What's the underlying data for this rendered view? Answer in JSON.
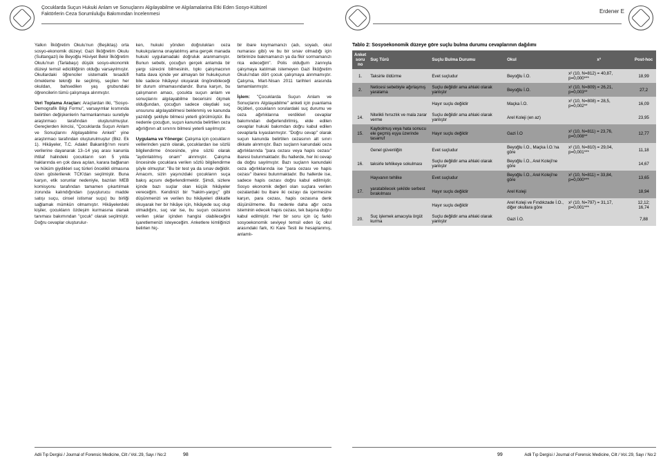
{
  "header": {
    "title_line1": "Çocuklarda Suçun Hukuki Anlam ve Sonuçlarını Algılayabilme ve Algılamalarina Etki Eden Sosyo-Kültürel",
    "title_line2": "Faktörlerin Ceza Sorumluluğu Bakımından İncelenmesi",
    "author": "Erdener E"
  },
  "body": {
    "p1": "Yalkın İlköğretim Okulu'nun (Beşiktaş) orta sosyo-ekonomik düzeyi; Gazi İlköğretim Okulu (Sultangazi) ile Beyoğlu Hüviyet Bekir İlköğretim Okulu'nun (Tarlabaşı) düşük sosyo-ekonomik düzeyi temsil edicililiğinin olduğu varsayılmıştır. Okullardaki öğrenciler sistematik tesadüfi örnekleme tekniği ile seçilmiş, seçilen her okuldan, bahsedilen yaş grubundaki öğrencilerin tümü çalışmaya alınmıştır.",
    "p2a": "Veri Toplama Araçları:",
    "p2": " Araçlardan ilki, \"Sosyo-Demografik Bilgi Formu\", varsayımlar kısmında belirtilen değişkenlerin harmanlanması suretiyle araştırmacı tarafından oluşturulmuştur. Gereçlerden ikincisi, \"Çocuklarda Suçun Anlam ve Sonuçlarını Algılayabilme Anketi\" yine araştırmacı tarafından oluşturulmuştur (Bkz. Ek 1). Hikâyeler, T.C. Adalet Bakanlığı'nın resmi verilerine dayanarak 13–14 yaş arası kanunla ihtilaf halindeki çocukların son 5 yılda haklarında en çok dava açılan, karara bağlanan ve hüküm giydikleri suç türleri öncelikli olmasına özen gösterilerek TCK'dan seçilmiştir. Buna karşın, etik sorunlar nedeniyle, bazıları MEB komisyonu tarafından tamamen çıkartılmak zorunda kalındığından (uyuşturucu madde satışı suçu, cinsel istismar suçu) bu birliği sağlamak mümkün olmamıştır. Hikâyelerdeki kişiler, çocukların özdeşim kurmasına olanak tanıması bakımından \"çocuk\" olarak seçilmiştir. Doğru cevaplar oluşturulur-",
    "p3": "ken, hukuki yönden doğrulukları ceza hukukçularına onaylatılmış ama gerçek manada hukuki uygulamadaki doğruluk aranmamıştır. Bunun sebebi, çocuğun gerçek anlamda bir yargı sürecini bilmesinin, tıpkı çalışmacının hatta dava içinde yer almayan bir hukukçunun bile sadece hikâyeyi okuyarak öngörebileceği bir durum olmamasındandır. Buna karşın, bu çalışmanın amacı, çocukta suçun anlam ve sonuçlarını algılayabilme becerisini ölçmek olduğundan, çocuğun sadece olaydaki suç unsurunu algılayabilmesi beklenmiş ve kanunda yazıldığı şekliyle bilmesi yeterli görülmüştür. Bu nedenle çocuğun, suçun kanunda belirtilen ceza ağırlığının alt sınırını bilmesi yeterli sayılmıştır.",
    "p4a": "Uygulama ve Yönerge:",
    "p4": " Çalışma için çocukların velilerinden yazılı olarak, çocuklardan ise sözlü bilgilendirme öncesinde, yine sözlü olarak \"aydınlatılmış onam\" alınmıştır. Çalışma öncesinde çocuklara verilen sözlü bilgilendirme şöyle olmuştur: \"Bu bir test ya da sınav değildir. Amacım, sizin yaşınızdaki çocukların suça bakış açısını değerlendirmektir. Şimdi, sizlere içinde bazı suçlar olan küçük hikâyeler vereceğim. Kendinizi bir \"hakim-yargıç\" gibi düşünmenizi ve verilen bu hikâyeleri dikkatle okuyarak her bir hikâye için, hikâyede suç olup olmadığını, suç var ise, bu suçun cezasının verilen şıklar içinden hangisi olabileceğini işaretlemenizi isteyeceğim. Anketlere kimliğinizi belirten hiç-",
    "p5": "bir ibare koymamanızı (adı, soyadı, okul numarası gibi) ve bu bir sınav olmadığı için birbirinize bakmamanızı ya da fikir sormamanızı rica edeceğim\". Polis olduğum zannıyla çalışmaya katılmak istemeyen Gazi İlköğretim Okulu'ndan dört çocuk çalışmaya alınmamıştır. Çalışma, Mart-Nisan 2011 tarihleri arasında tamamlanmıştır.",
    "p6a": "İşlem:",
    "p6": " \"Çocuklarda Suçun Anlam ve Sonuçlarını Algılayabilme\" anketi için puanlama ölçütleri, çocukların sorulardaki suç durumu ve ceza ağırlıklarına verdikleri cevaplar bakımından değerlendirilmiş, elde edilen cevaplar hukuki bakımdan doğru kabul edilen cevaplarla kıyaslanmıştır. \"Doğru cevap\" olarak suçun kanunda belirtilen cezasının alt sınırı dikkate alınmıştır. Bazı suçların kanundaki ceza ağırlıklarında \"para cezası veya hapis cezası\" ibaresi bulunmaktadır. Bu hallerde, her iki cevap da doğru sayılmıştır. Bazı suçların kanundaki ceza ağırlıklarında ise \"para cezası ve hapis cezası\" ibaresi bulunmaktadır. Bu hallerde ise, sadece hapis cezası doğru kabul edilmiştir. Sosyo ekonomik değeri olan suçlara verilen cezalardaki bu ibare iki cezayı da içermesine karşın, para cezası, hapis cezasına denk düşünülmeme. Bu nedenle daha ağır ceza isteminin edecek hapis cezası, tek başına doğru kabul edilmiştir. Her bir soru için üç farklı sosyoekonomik seviyeyi temsil eden üç okul arasındaki fark, Ki Kare Testi ile hesaplanmış, anlamlı-"
  },
  "table": {
    "caption": "Tablo 2: Sosyoekonomik düzeye göre suçlu bulma durumu cevaplarının dağılımı",
    "head": {
      "c1": "Anket soru no",
      "c2": "Suç Türü",
      "c3": "Suçlu Bulma Durumu",
      "c4": "Okul",
      "c5": "x²",
      "c6": "Post-hoc"
    },
    "rows": [
      {
        "no": "1.",
        "type": "Taksirle öldürme",
        "bulma": "Evet suçludur",
        "okul": "Beyoğlu İ.O.",
        "x2": "x² (10, N=812) = 40,87, p=0,000***",
        "phoc": "18,99",
        "cls": "row-lt"
      },
      {
        "no": "2.",
        "type": "Neticesi sebebiyle ağırlaşmış yaralama",
        "bulma": "Suçlu değildir ama ahlaki olarak yanlıştır",
        "okul": "Beyoğlu İ.O.",
        "x2": "x² (10, N=809) = 26,21, p=0,003**",
        "phoc": "27,2",
        "cls": "row-dk"
      },
      {
        "no": "",
        "type": "",
        "bulma": "Hayır suçlu değildir",
        "okul": "Maçka İ.O.",
        "x2": "x² (10, N=808) = 28,5, p=0,002**",
        "phoc": "16,09",
        "cls": "row-lt"
      },
      {
        "no": "14.",
        "type": "Nitelikli hırsızlık ve mala zarar verme",
        "bulma": "Suçlu değildir ama ahlaki olarak yanlıştır",
        "okul": "Arel Koleji (en az)",
        "x2": "",
        "phoc": "23,95",
        "cls": "row-lt"
      },
      {
        "no": "15.",
        "type": "Kaybolmuş veya hata sonucu ele geçmiş eşya üzerinde tasarruf",
        "bulma": "Hayır suçlu değildir",
        "okul": "Gazi İ.O",
        "x2": "x² (10, N=811) = 23,76, p=0,008**",
        "phoc": "12,77",
        "cls": "row-dk"
      },
      {
        "no": "",
        "type": "Genel güvenliğin",
        "bulma": "Evet suçludur",
        "okul": "Beyoğlu İ.O., Maçka İ.O.'na göre",
        "x2": "x² (10, N=810) = 29,04, p=0,001***",
        "phoc": "11,18",
        "cls": "row-lt"
      },
      {
        "no": "16.",
        "type": "taksirle tehlikeye sokulması",
        "bulma": "Suçlu değildir ama ahlaki olarak yanlıştır",
        "okul": "Beyoğlu İ.O., Arel Koleji'ne göre",
        "x2": "",
        "phoc": "14,67",
        "cls": "row-lt"
      },
      {
        "no": "",
        "type": "Hayvanın tehlike",
        "bulma": "Evet suçludur",
        "okul": "Beyoğlu İ.O., Arel Koleji'ne göre",
        "x2": "x² (10, N=811) = 33,84, p=0,000***",
        "phoc": "13,65",
        "cls": "row-dk"
      },
      {
        "no": "17.",
        "type": "yaratabilecek şekilde serbest bırakılması",
        "bulma": "Hayır suçlu değildir",
        "okul": "Arel Koleji",
        "x2": "",
        "phoc": "18,94",
        "cls": "row-dk"
      },
      {
        "no": "",
        "type": "",
        "bulma": "Hayır suçlu değildir",
        "okul": "Arel Koleji ve Fındıkzade İ.O., diğer okullara göre",
        "x2": "x² (10, N=797) = 31,17, p=0,001***",
        "phoc": "12,12; 16,74",
        "cls": "row-lt"
      },
      {
        "no": "20.",
        "type": "Suç işlemek amacıyla örgüt kurma",
        "bulma": "Suçlu değildir ama ahlaki olarak yanlıştır",
        "okul": "Gazi İ.O.",
        "x2": "",
        "phoc": "7,88",
        "cls": "row-lt"
      }
    ]
  },
  "footer": {
    "journal": "Adli Tıp Dergisi / Journal of Forensic Medicine, Cilt / Vol.:29, Sayı / No:2",
    "page_left": "98",
    "page_right": "99"
  }
}
